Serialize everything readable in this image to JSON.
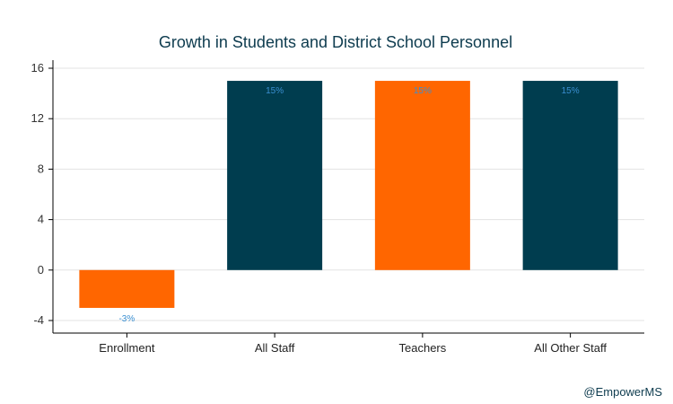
{
  "chart_data": {
    "type": "bar",
    "title": "Growth in Students and District School Personnel",
    "categories": [
      "Enrollment",
      "All Staff",
      "Teachers",
      "All Other Staff"
    ],
    "values": [
      -3,
      15,
      15,
      15
    ],
    "value_labels": [
      "-3%",
      "15%",
      "15%",
      "15%"
    ],
    "bar_colors": [
      "#ff6600",
      "#003d4f",
      "#ff6600",
      "#003d4f"
    ],
    "label_color": "#3a8fd1",
    "ylim": [
      -4,
      16
    ],
    "yticks": [
      16,
      12,
      8,
      4,
      0,
      -4
    ],
    "grid": true,
    "xlabel": "",
    "ylabel": ""
  },
  "credit": "@EmpowerMS"
}
